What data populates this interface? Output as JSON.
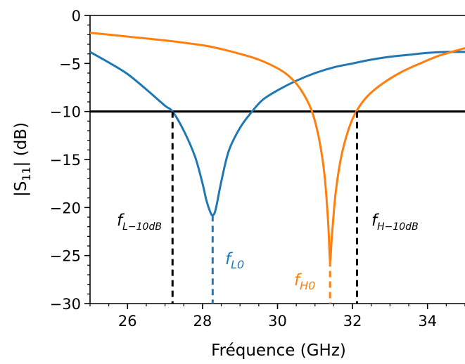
{
  "chart_data": {
    "type": "line",
    "xlabel": "Fréquence (GHz)",
    "ylabel": {
      "pre": "|S",
      "sub": "11",
      "post": "| (dB)"
    },
    "xlim": [
      25,
      35
    ],
    "ylim": [
      -30,
      0
    ],
    "xticks": [
      26,
      28,
      30,
      32,
      34
    ],
    "xtick_labels": [
      "26",
      "28",
      "30",
      "32",
      "34"
    ],
    "yticks": [
      0,
      -5,
      -10,
      -15,
      -20,
      -25,
      -30
    ],
    "ytick_labels": [
      "0",
      "−5",
      "−10",
      "−15",
      "−20",
      "−25",
      "−30"
    ],
    "grid": false,
    "colors": {
      "low": "#1f77b4",
      "high": "#ff7f0e",
      "ref": "#000000"
    },
    "series": [
      {
        "key": "low",
        "color": "#1f77b4",
        "x": [
          25.0,
          25.5,
          26.0,
          26.5,
          27.0,
          27.2,
          27.5,
          27.8,
          28.0,
          28.1,
          28.2,
          28.27,
          28.35,
          28.5,
          28.7,
          29.0,
          29.3,
          29.6,
          30.0,
          30.5,
          31.0,
          31.5,
          32.0,
          32.5,
          33.0,
          33.5,
          34.0,
          34.5,
          35.0
        ],
        "y": [
          -3.8,
          -4.9,
          -6.1,
          -7.7,
          -9.4,
          -10.0,
          -12.0,
          -14.7,
          -17.5,
          -19.2,
          -20.4,
          -20.8,
          -20.2,
          -17.3,
          -14.1,
          -11.7,
          -10.1,
          -8.8,
          -7.8,
          -6.8,
          -6.0,
          -5.4,
          -5.0,
          -4.6,
          -4.3,
          -4.1,
          -3.9,
          -3.8,
          -3.8
        ]
      },
      {
        "key": "high",
        "color": "#ff7f0e",
        "x": [
          25.0,
          26.0,
          27.0,
          28.0,
          28.5,
          29.0,
          29.5,
          30.0,
          30.3,
          30.6,
          30.9,
          31.1,
          31.25,
          31.35,
          31.4,
          31.45,
          31.55,
          31.7,
          31.9,
          32.1,
          32.4,
          32.8,
          33.3,
          33.8,
          34.3,
          35.0
        ],
        "y": [
          -1.8,
          -2.2,
          -2.6,
          -3.1,
          -3.5,
          -4.0,
          -4.6,
          -5.5,
          -6.3,
          -7.6,
          -9.8,
          -12.7,
          -16.5,
          -21.5,
          -25.5,
          -23.0,
          -18.5,
          -14.7,
          -11.8,
          -10.0,
          -8.4,
          -7.1,
          -5.9,
          -5.0,
          -4.2,
          -3.4
        ]
      }
    ],
    "reference_line": {
      "y": -10
    },
    "markers": [
      {
        "key": "fL10",
        "x": 27.2,
        "y_top": -10,
        "color": "#000000",
        "label": "f",
        "sub": "L−10dB"
      },
      {
        "key": "fL0",
        "x": 28.27,
        "y_top": -20.8,
        "color": "#1f77b4",
        "label": "f",
        "sub": "L0"
      },
      {
        "key": "fH0",
        "x": 31.4,
        "y_top": -25.5,
        "color": "#ff7f0e",
        "label": "f",
        "sub": "H0"
      },
      {
        "key": "fH10",
        "x": 32.12,
        "y_top": -10,
        "color": "#000000",
        "label": "f",
        "sub": "H−10dB"
      }
    ]
  }
}
